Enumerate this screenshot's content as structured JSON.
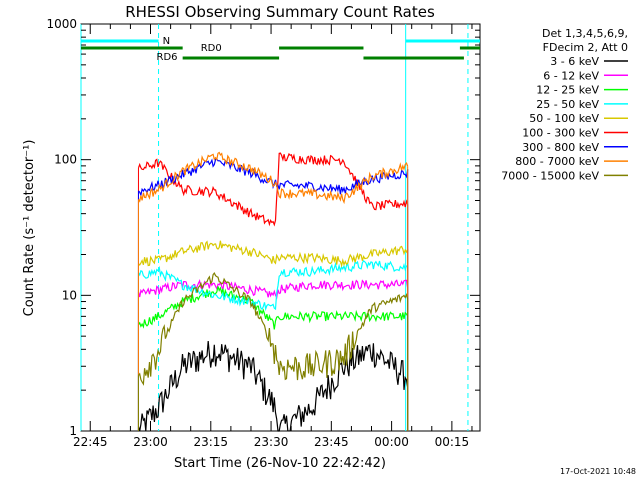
{
  "chart_data": {
    "type": "line",
    "title": "RHESSI Observing Summary Count Rates",
    "xlabel": "Start Time (26-Nov-10 22:42:42)",
    "ylabel": "Count Rate (s⁻¹ detector⁻¹)",
    "y_scale": "log",
    "ylim": [
      1,
      1000
    ],
    "xlim": [
      "22:42:42",
      "00:22:00"
    ],
    "x_ticks": [
      "22:45",
      "23:00",
      "23:15",
      "23:30",
      "23:45",
      "00:00",
      "00:15"
    ],
    "y_ticks": [
      "1",
      "10",
      "100",
      "1000"
    ],
    "grid": false,
    "legend_placement": "right",
    "legend_header": [
      "Det 1,3,4,5,6,9,",
      "FDecim 2, Att 0"
    ],
    "series": [
      {
        "name": "3 - 6 keV",
        "color": "#000000",
        "values": [
          1.0,
          1.5,
          3,
          4,
          3,
          1.5,
          1.0,
          1.5,
          3,
          4,
          2.5
        ]
      },
      {
        "name": "6 - 12 keV",
        "color": "#ff00ff",
        "values": [
          10,
          11,
          12,
          12,
          11,
          10,
          11,
          12,
          12,
          12,
          12
        ]
      },
      {
        "name": "12 - 25 keV",
        "color": "#00ff00",
        "values": [
          6,
          7,
          9,
          11,
          9,
          6,
          7,
          7,
          7,
          7,
          7
        ]
      },
      {
        "name": "25 - 50 keV",
        "color": "#00ffff",
        "values": [
          14,
          15,
          12,
          10,
          9,
          8,
          15,
          15,
          16,
          17,
          16
        ]
      },
      {
        "name": "50 - 100 keV",
        "color": "#d8c800",
        "values": [
          18,
          18,
          21,
          24,
          21,
          18,
          19,
          19,
          18,
          20,
          22
        ]
      },
      {
        "name": "100 - 300 keV",
        "color": "#ff0000",
        "values": [
          85,
          95,
          60,
          58,
          40,
          33,
          105,
          100,
          100,
          45,
          48
        ]
      },
      {
        "name": "300 - 800 keV",
        "color": "#0000ff",
        "values": [
          58,
          65,
          78,
          98,
          80,
          66,
          65,
          64,
          60,
          72,
          80
        ]
      },
      {
        "name": "800 - 7000 keV",
        "color": "#ff8000",
        "values": [
          52,
          60,
          82,
          108,
          86,
          68,
          57,
          56,
          52,
          75,
          90
        ]
      },
      {
        "name": "7000 - 15000 keV",
        "color": "#808000",
        "values": [
          2.5,
          4,
          9,
          14,
          9,
          4,
          3,
          3,
          3.5,
          8,
          10
        ]
      }
    ],
    "x": [
      "22:57",
      "23:02",
      "23:08",
      "23:16",
      "23:25",
      "23:31",
      "23:32",
      "23:40",
      "23:48",
      "23:55",
      "00:04"
    ],
    "flags": {
      "N": {
        "label": "N",
        "color": "#00ffff"
      },
      "RD0": {
        "label": "RD0",
        "color": "#008000"
      },
      "RD6": {
        "label": "RD6",
        "color": "#008000"
      }
    }
  },
  "footer": {
    "date_stamp": "17-Oct-2021 10:48"
  }
}
